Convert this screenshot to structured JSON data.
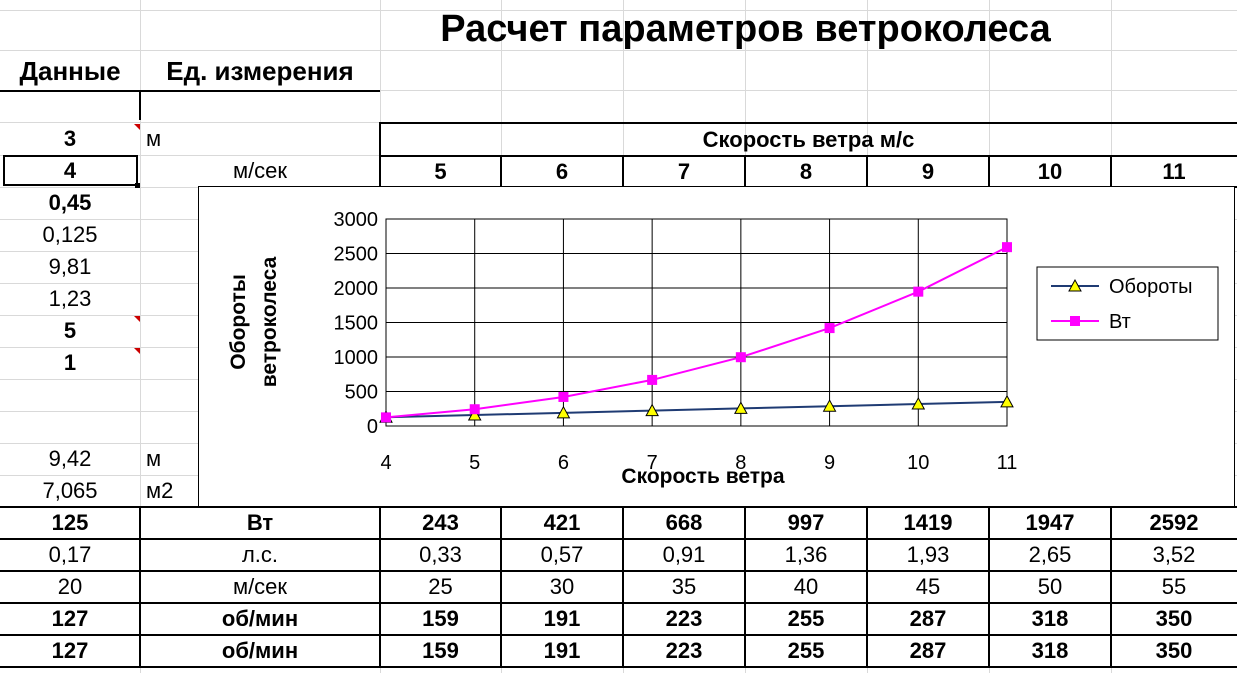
{
  "title": "Расчет параметров ветроколеса",
  "col_headers": {
    "data": "Данные",
    "units": "Ед. измерения"
  },
  "speed_header": "Скорость ветра м/с",
  "speed_columns": [
    "5",
    "6",
    "7",
    "8",
    "9",
    "10",
    "11"
  ],
  "left_rows": [
    {
      "value": "3",
      "unit": "м",
      "bold": true
    },
    {
      "value": "4",
      "unit": "м/сек",
      "bold": true
    },
    {
      "value": "0,45",
      "unit": "",
      "bold": true
    },
    {
      "value": "0,125",
      "unit": "",
      "bold": false
    },
    {
      "value": "9,81",
      "unit": "",
      "bold": false
    },
    {
      "value": "1,23",
      "unit": "",
      "bold": false
    },
    {
      "value": "5",
      "unit": "",
      "bold": true
    },
    {
      "value": "1",
      "unit": "",
      "bold": true
    },
    {
      "value": "",
      "unit": "",
      "bold": false
    },
    {
      "value": "",
      "unit": "",
      "bold": false
    },
    {
      "value": "9,42",
      "unit": "м",
      "bold": false
    },
    {
      "value": "7,065",
      "unit": "м2",
      "bold": false
    }
  ],
  "table_rows": [
    {
      "first": "125",
      "unit": "Вт",
      "values": [
        "243",
        "421",
        "668",
        "997",
        "1419",
        "1947",
        "2592"
      ],
      "bold": true
    },
    {
      "first": "0,17",
      "unit": "л.с.",
      "values": [
        "0,33",
        "0,57",
        "0,91",
        "1,36",
        "1,93",
        "2,65",
        "3,52"
      ],
      "bold": false
    },
    {
      "first": "20",
      "unit": "м/сек",
      "values": [
        "25",
        "30",
        "35",
        "40",
        "45",
        "50",
        "55"
      ],
      "bold": false
    },
    {
      "first": "127",
      "unit": "об/мин",
      "values": [
        "159",
        "191",
        "223",
        "255",
        "287",
        "318",
        "350"
      ],
      "bold": true
    },
    {
      "first": "127",
      "unit": "об/мин",
      "values": [
        "159",
        "191",
        "223",
        "255",
        "287",
        "318",
        "350"
      ],
      "bold": true
    }
  ],
  "chart_data": {
    "type": "line",
    "title": "",
    "xlabel": "Скорость ветра",
    "ylabel_lines": [
      "Обороты",
      "ветроколеса"
    ],
    "x": [
      4,
      5,
      6,
      7,
      8,
      9,
      10,
      11
    ],
    "xlim": [
      4,
      11
    ],
    "ylim": [
      0,
      3000
    ],
    "yticks": [
      0,
      500,
      1000,
      1500,
      2000,
      2500,
      3000
    ],
    "grid": true,
    "legend_position": "right",
    "series": [
      {
        "name": "Обороты",
        "values": [
          127,
          159,
          191,
          223,
          255,
          287,
          318,
          350
        ],
        "color": "#1f3b73",
        "marker": "triangle",
        "marker_color": "#ffff00"
      },
      {
        "name": "Вт",
        "values": [
          125,
          243,
          421,
          668,
          997,
          1419,
          1947,
          2592
        ],
        "color": "#ff00ff",
        "marker": "square",
        "marker_color": "#ff00ff"
      }
    ]
  }
}
